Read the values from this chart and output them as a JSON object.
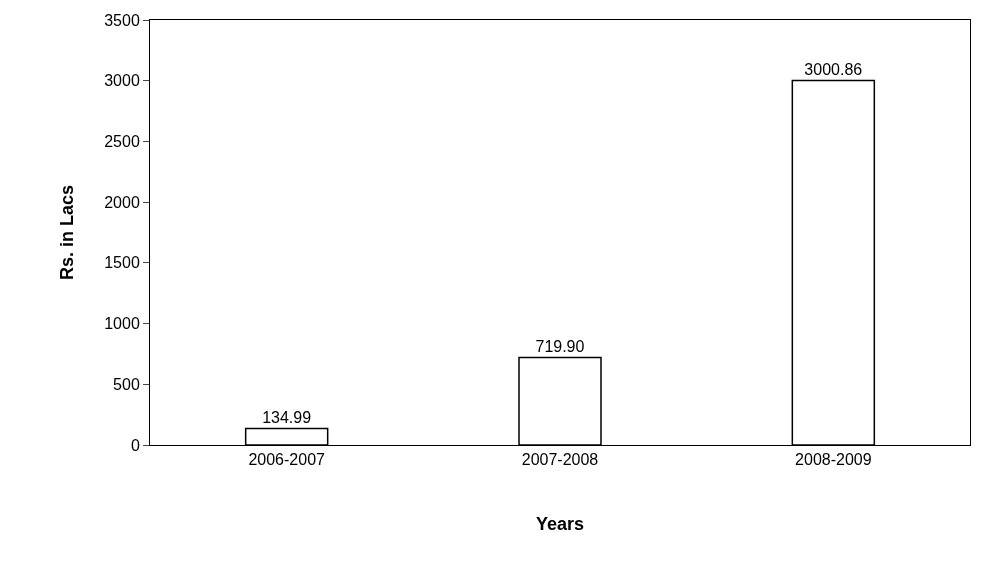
{
  "chart_data": {
    "type": "bar",
    "xlabel": "Years",
    "ylabel": "Rs. in Lacs",
    "categories": [
      "2006-2007",
      "2007-2008",
      "2008-2009"
    ],
    "values": [
      134.99,
      719.9,
      3000.86
    ],
    "value_labels": [
      "134.99",
      "719.90",
      "3000.86"
    ],
    "color": "#ffffff",
    "ylim": [
      0,
      3500
    ],
    "yticks": [
      0,
      500,
      1000,
      1500,
      2000,
      2500,
      3000,
      3500
    ]
  }
}
